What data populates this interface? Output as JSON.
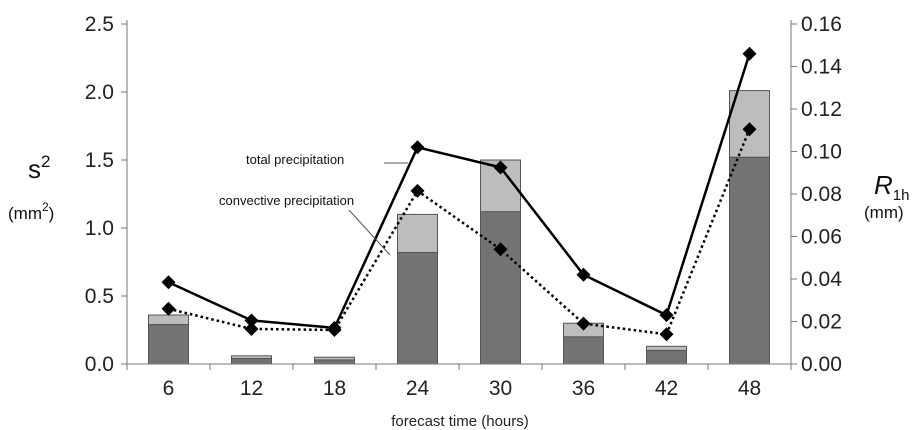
{
  "chart_data": {
    "type": "bar+line",
    "title": "",
    "xlabel": "forecast time (hours)",
    "categories": [
      "6",
      "12",
      "18",
      "24",
      "30",
      "36",
      "42",
      "48"
    ],
    "y_left": {
      "label_main": "s",
      "label_sup": "2",
      "unit_pre": "(mm",
      "unit_sup": "2",
      "unit_post": ")",
      "range": [
        0,
        2.5
      ],
      "ticks": [
        "0.0",
        "0.5",
        "1.0",
        "1.5",
        "2.0",
        "2.5"
      ]
    },
    "y_right": {
      "label_main": "R",
      "label_sub": "1h",
      "unit": "(mm)",
      "range": [
        0,
        0.16
      ],
      "ticks": [
        "0.00",
        "0.02",
        "0.04",
        "0.06",
        "0.08",
        "0.10",
        "0.12",
        "0.14",
        "0.16"
      ]
    },
    "bars": {
      "axis": "left",
      "stacked": true,
      "series": [
        {
          "values": [
            0.29,
            0.04,
            0.03,
            0.82,
            1.12,
            0.2,
            0.1,
            1.52
          ],
          "color": "#737373"
        },
        {
          "values": [
            0.07,
            0.02,
            0.02,
            0.28,
            0.38,
            0.1,
            0.03,
            0.49
          ],
          "color": "#bdbdbd"
        }
      ]
    },
    "lines": {
      "axis": "right",
      "series": [
        {
          "name": "total precipitation",
          "values": [
            0.0385,
            0.0205,
            0.017,
            0.102,
            0.0925,
            0.042,
            0.023,
            0.146
          ],
          "style": "solid",
          "color": "#000000"
        },
        {
          "name": "convective precipitation",
          "values": [
            0.026,
            0.0165,
            0.016,
            0.0815,
            0.054,
            0.019,
            0.014,
            0.1105
          ],
          "style": "dotted",
          "color": "#000000"
        }
      ]
    },
    "grid": false,
    "legend": "annotations"
  }
}
